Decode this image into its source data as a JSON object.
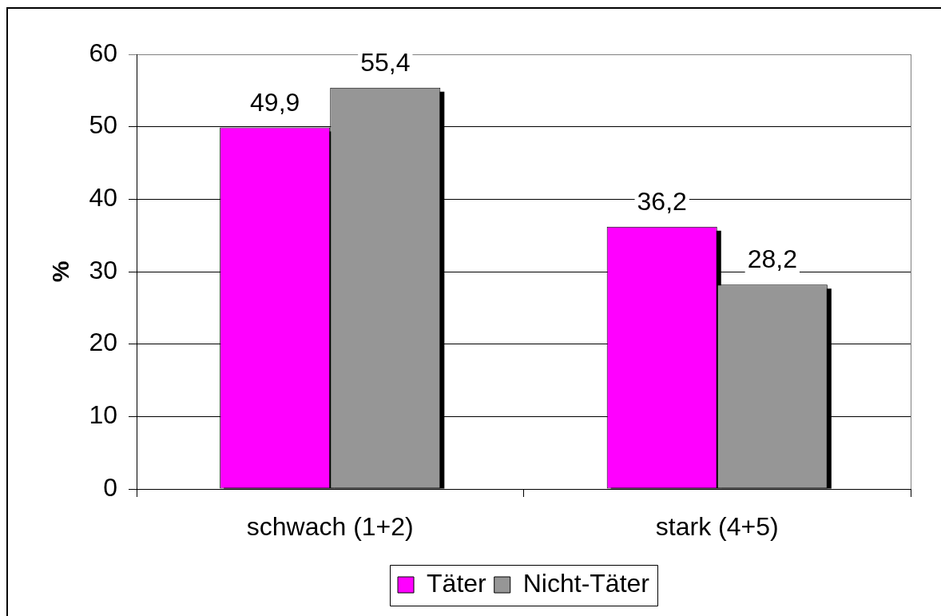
{
  "chart_data": {
    "type": "bar",
    "ylabel": "%",
    "categories": [
      "schwach (1+2)",
      "stark (4+5)"
    ],
    "series": [
      {
        "name": "Täter",
        "color": "#ff00ff",
        "values": [
          49.9,
          36.2
        ],
        "value_labels": [
          "49,9",
          "36,2"
        ]
      },
      {
        "name": "Nicht-Täter",
        "color": "#969696",
        "values": [
          55.4,
          28.2
        ],
        "value_labels": [
          "55,4",
          "28,2"
        ]
      }
    ],
    "ylim": [
      0,
      60
    ],
    "yticks": [
      0,
      10,
      20,
      30,
      40,
      50,
      60
    ],
    "grid": "y",
    "legend": "bottom"
  }
}
